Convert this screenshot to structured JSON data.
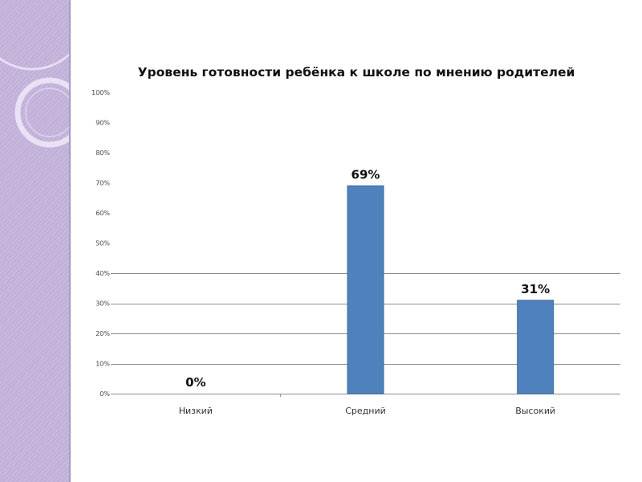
{
  "theme": {
    "panel_color": "#c4b4dc",
    "bar_color": "#4f81bd",
    "bar_edge": "#3d6a9e",
    "grid_color": "#8c8c8c"
  },
  "chart_data": {
    "type": "bar",
    "title": "Уровень готовности ребёнка к школе по мнению родителей",
    "categories": [
      "Низкий",
      "Средний",
      "Высокий"
    ],
    "values": [
      0,
      69,
      31
    ],
    "data_labels": [
      "0%",
      "69%",
      "31%"
    ],
    "ylim": [
      0,
      100
    ],
    "y_ticks": [
      0,
      10,
      20,
      30,
      40,
      50,
      60,
      70,
      80,
      90,
      100
    ],
    "y_tick_labels": [
      "0%",
      "10%",
      "20%",
      "30%",
      "40%",
      "50%",
      "60%",
      "70%",
      "80%",
      "90%",
      "100%"
    ],
    "grid_visible_ticks": [
      0,
      10,
      20,
      30,
      40
    ],
    "xlabel": "",
    "ylabel": "",
    "legend": "none"
  }
}
